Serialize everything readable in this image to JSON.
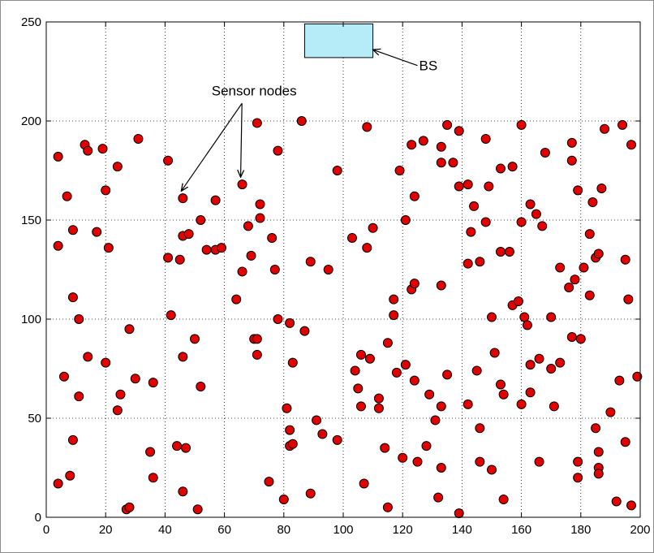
{
  "chart_data": {
    "type": "scatter",
    "title": "",
    "xlabel": "",
    "ylabel": "",
    "xlim": [
      0,
      200
    ],
    "ylim": [
      0,
      250
    ],
    "grid": true,
    "x_ticks": [
      "0",
      "20",
      "40",
      "60",
      "80",
      "100",
      "120",
      "140",
      "160",
      "180",
      "200"
    ],
    "y_ticks": [
      "0",
      "50",
      "100",
      "150",
      "200",
      "250"
    ],
    "marker_color": "#e00000",
    "marker_edge": "#000000",
    "base_station": {
      "label": "BS",
      "x0": 87,
      "x1": 110,
      "y0": 232,
      "y1": 249,
      "fill": "#b6ecf8",
      "arrow_from": [
        125,
        228
      ],
      "arrow_to": [
        110,
        236
      ]
    },
    "annotation": {
      "text": "Sensor nodes",
      "x": 70,
      "y": 213,
      "arrow_targets": [
        [
          46,
          163
        ],
        [
          66,
          170
        ]
      ]
    },
    "points": [
      [
        4,
        182
      ],
      [
        4,
        137
      ],
      [
        4,
        17
      ],
      [
        6,
        71
      ],
      [
        7,
        162
      ],
      [
        8,
        21
      ],
      [
        9,
        145
      ],
      [
        9,
        111
      ],
      [
        9,
        39
      ],
      [
        11,
        100
      ],
      [
        11,
        61
      ],
      [
        13,
        188
      ],
      [
        14,
        185
      ],
      [
        14,
        81
      ],
      [
        17,
        144
      ],
      [
        19,
        186
      ],
      [
        20,
        78
      ],
      [
        20,
        165
      ],
      [
        21,
        136
      ],
      [
        24,
        177
      ],
      [
        25,
        62
      ],
      [
        24,
        54
      ],
      [
        27,
        4
      ],
      [
        28,
        5
      ],
      [
        28,
        95
      ],
      [
        30,
        70
      ],
      [
        31,
        191
      ],
      [
        35,
        33
      ],
      [
        36,
        68
      ],
      [
        36,
        20
      ],
      [
        41,
        180
      ],
      [
        41,
        131
      ],
      [
        42,
        102
      ],
      [
        44,
        36
      ],
      [
        45,
        130
      ],
      [
        46,
        161
      ],
      [
        46,
        142
      ],
      [
        46,
        81
      ],
      [
        46,
        13
      ],
      [
        47,
        35
      ],
      [
        48,
        143
      ],
      [
        50,
        90
      ],
      [
        51,
        4
      ],
      [
        52,
        150
      ],
      [
        52,
        66
      ],
      [
        54,
        135
      ],
      [
        57,
        135
      ],
      [
        57,
        160
      ],
      [
        59,
        136
      ],
      [
        64,
        110
      ],
      [
        66,
        168
      ],
      [
        66,
        124
      ],
      [
        68,
        147
      ],
      [
        69,
        132
      ],
      [
        70,
        90
      ],
      [
        71,
        199
      ],
      [
        71,
        90
      ],
      [
        71,
        82
      ],
      [
        72,
        151
      ],
      [
        72,
        158
      ],
      [
        75,
        18
      ],
      [
        76,
        141
      ],
      [
        77,
        125
      ],
      [
        78,
        185
      ],
      [
        78,
        100
      ],
      [
        80,
        9
      ],
      [
        81,
        55
      ],
      [
        82,
        98
      ],
      [
        82,
        44
      ],
      [
        82,
        36
      ],
      [
        83,
        37
      ],
      [
        83,
        78
      ],
      [
        86,
        200
      ],
      [
        87,
        94
      ],
      [
        89,
        129
      ],
      [
        89,
        12
      ],
      [
        91,
        49
      ],
      [
        93,
        42
      ],
      [
        95,
        125
      ],
      [
        98,
        175
      ],
      [
        98,
        39
      ],
      [
        103,
        141
      ],
      [
        104,
        74
      ],
      [
        105,
        65
      ],
      [
        106,
        82
      ],
      [
        106,
        56
      ],
      [
        107,
        17
      ],
      [
        108,
        136
      ],
      [
        108,
        197
      ],
      [
        109,
        80
      ],
      [
        110,
        146
      ],
      [
        112,
        60
      ],
      [
        112,
        55
      ],
      [
        114,
        35
      ],
      [
        115,
        88
      ],
      [
        115,
        5
      ],
      [
        117,
        110
      ],
      [
        117,
        102
      ],
      [
        118,
        73
      ],
      [
        119,
        175
      ],
      [
        120,
        30
      ],
      [
        121,
        150
      ],
      [
        121,
        77
      ],
      [
        123,
        115
      ],
      [
        123,
        188
      ],
      [
        124,
        162
      ],
      [
        124,
        118
      ],
      [
        124,
        69
      ],
      [
        125,
        28
      ],
      [
        127,
        190
      ],
      [
        128,
        36
      ],
      [
        129,
        62
      ],
      [
        131,
        49
      ],
      [
        132,
        10
      ],
      [
        133,
        187
      ],
      [
        133,
        179
      ],
      [
        133,
        117
      ],
      [
        133,
        56
      ],
      [
        133,
        25
      ],
      [
        135,
        198
      ],
      [
        135,
        72
      ],
      [
        137,
        179
      ],
      [
        139,
        195
      ],
      [
        139,
        167
      ],
      [
        139,
        2
      ],
      [
        142,
        168
      ],
      [
        142,
        128
      ],
      [
        142,
        57
      ],
      [
        143,
        144
      ],
      [
        144,
        157
      ],
      [
        145,
        74
      ],
      [
        146,
        129
      ],
      [
        146,
        45
      ],
      [
        146,
        28
      ],
      [
        148,
        191
      ],
      [
        148,
        149
      ],
      [
        149,
        167
      ],
      [
        150,
        101
      ],
      [
        150,
        24
      ],
      [
        151,
        83
      ],
      [
        153,
        176
      ],
      [
        153,
        134
      ],
      [
        153,
        67
      ],
      [
        154,
        62
      ],
      [
        154,
        9
      ],
      [
        156,
        134
      ],
      [
        157,
        177
      ],
      [
        157,
        107
      ],
      [
        159,
        109
      ],
      [
        160,
        198
      ],
      [
        160,
        149
      ],
      [
        160,
        57
      ],
      [
        161,
        101
      ],
      [
        162,
        97
      ],
      [
        163,
        158
      ],
      [
        163,
        77
      ],
      [
        163,
        63
      ],
      [
        165,
        153
      ],
      [
        166,
        80
      ],
      [
        166,
        28
      ],
      [
        167,
        147
      ],
      [
        168,
        184
      ],
      [
        170,
        101
      ],
      [
        170,
        75
      ],
      [
        171,
        56
      ],
      [
        173,
        126
      ],
      [
        173,
        78
      ],
      [
        176,
        116
      ],
      [
        177,
        189
      ],
      [
        177,
        180
      ],
      [
        177,
        91
      ],
      [
        178,
        120
      ],
      [
        179,
        165
      ],
      [
        179,
        28
      ],
      [
        179,
        20
      ],
      [
        180,
        90
      ],
      [
        181,
        126
      ],
      [
        183,
        143
      ],
      [
        183,
        112
      ],
      [
        184,
        159
      ],
      [
        185,
        131
      ],
      [
        185,
        45
      ],
      [
        186,
        133
      ],
      [
        186,
        25
      ],
      [
        186,
        22
      ],
      [
        186,
        33
      ],
      [
        187,
        166
      ],
      [
        188,
        196
      ],
      [
        190,
        53
      ],
      [
        192,
        8
      ],
      [
        193,
        69
      ],
      [
        194,
        198
      ],
      [
        195,
        130
      ],
      [
        195,
        38
      ],
      [
        196,
        110
      ],
      [
        197,
        188
      ],
      [
        197,
        6
      ],
      [
        199,
        71
      ]
    ]
  }
}
